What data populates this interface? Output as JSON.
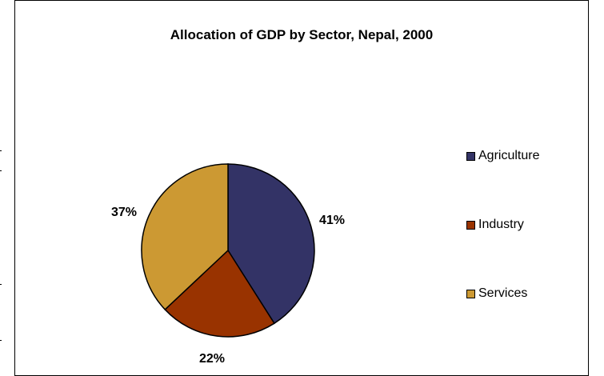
{
  "chart_data": {
    "type": "pie",
    "title": "Allocation of GDP by Sector, Nepal, 2000",
    "categories": [
      "Agriculture",
      "Industry",
      "Services"
    ],
    "values": [
      41,
      22,
      37
    ],
    "data_labels": [
      "41%",
      "22%",
      "37%"
    ],
    "colors": [
      "#333366",
      "#993300",
      "#CC9933"
    ],
    "legend": {
      "placement": "right",
      "entries": [
        "Agriculture",
        "Industry",
        "Services"
      ]
    },
    "start_angle": "12 o'clock",
    "direction": "clockwise"
  }
}
